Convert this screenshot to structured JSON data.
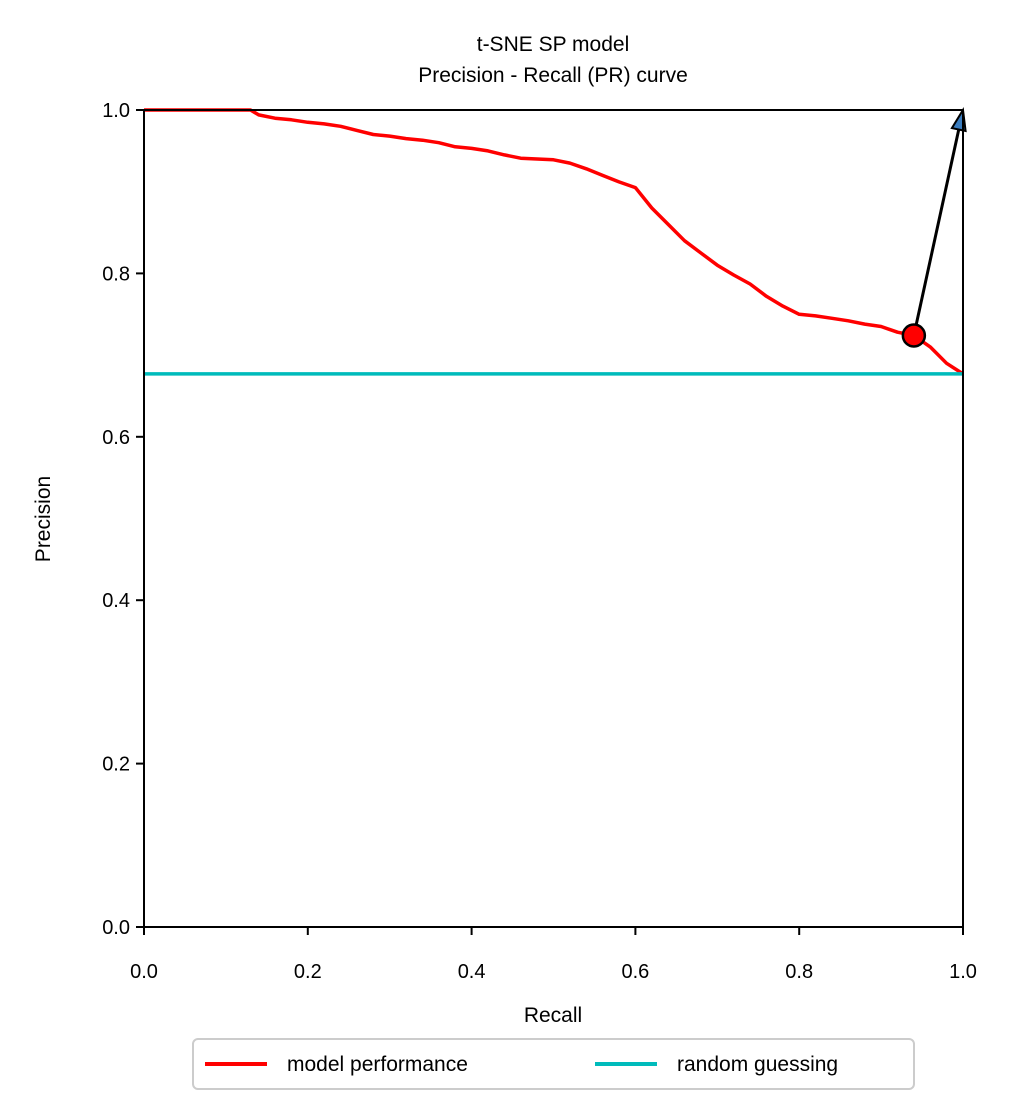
{
  "chart_data": {
    "type": "line",
    "title": "t-SNE SP model",
    "subtitle": "Precision - Recall (PR) curve",
    "xlabel": "Recall",
    "ylabel": "Precision",
    "xlim": [
      0.0,
      1.0
    ],
    "ylim": [
      0.0,
      1.0
    ],
    "x_ticks": [
      "0.0",
      "0.2",
      "0.4",
      "0.6",
      "0.8",
      "1.0"
    ],
    "y_ticks": [
      "0.0",
      "0.2",
      "0.4",
      "0.6",
      "0.8",
      "1.0"
    ],
    "grid": false,
    "legend_position": "bottom-center",
    "series": [
      {
        "name": "model performance",
        "color": "#ff0000",
        "points": [
          [
            0.0,
            1.0
          ],
          [
            0.13,
            1.0
          ],
          [
            0.14,
            0.994
          ],
          [
            0.16,
            0.99
          ],
          [
            0.18,
            0.988
          ],
          [
            0.2,
            0.985
          ],
          [
            0.22,
            0.983
          ],
          [
            0.24,
            0.98
          ],
          [
            0.26,
            0.975
          ],
          [
            0.28,
            0.97
          ],
          [
            0.3,
            0.968
          ],
          [
            0.32,
            0.965
          ],
          [
            0.34,
            0.963
          ],
          [
            0.36,
            0.96
          ],
          [
            0.38,
            0.955
          ],
          [
            0.4,
            0.953
          ],
          [
            0.42,
            0.95
          ],
          [
            0.44,
            0.945
          ],
          [
            0.46,
            0.941
          ],
          [
            0.48,
            0.94
          ],
          [
            0.5,
            0.939
          ],
          [
            0.52,
            0.935
          ],
          [
            0.54,
            0.928
          ],
          [
            0.56,
            0.92
          ],
          [
            0.58,
            0.912
          ],
          [
            0.6,
            0.905
          ],
          [
            0.62,
            0.88
          ],
          [
            0.64,
            0.86
          ],
          [
            0.66,
            0.84
          ],
          [
            0.68,
            0.825
          ],
          [
            0.7,
            0.81
          ],
          [
            0.72,
            0.798
          ],
          [
            0.74,
            0.787
          ],
          [
            0.76,
            0.772
          ],
          [
            0.78,
            0.76
          ],
          [
            0.8,
            0.75
          ],
          [
            0.82,
            0.748
          ],
          [
            0.84,
            0.745
          ],
          [
            0.86,
            0.742
          ],
          [
            0.88,
            0.738
          ],
          [
            0.9,
            0.735
          ],
          [
            0.92,
            0.728
          ],
          [
            0.94,
            0.724
          ],
          [
            0.96,
            0.71
          ],
          [
            0.98,
            0.69
          ],
          [
            1.0,
            0.677
          ]
        ]
      },
      {
        "name": "random guessing",
        "color": "#00bbbb",
        "points": [
          [
            0.0,
            0.677
          ],
          [
            1.0,
            0.677
          ]
        ]
      }
    ],
    "annotation": {
      "marker": [
        0.94,
        0.724
      ],
      "marker_color": "#ff0000",
      "arrow_target": [
        1.0,
        1.0
      ],
      "arrowhead_color": "#3b7dbf"
    }
  }
}
